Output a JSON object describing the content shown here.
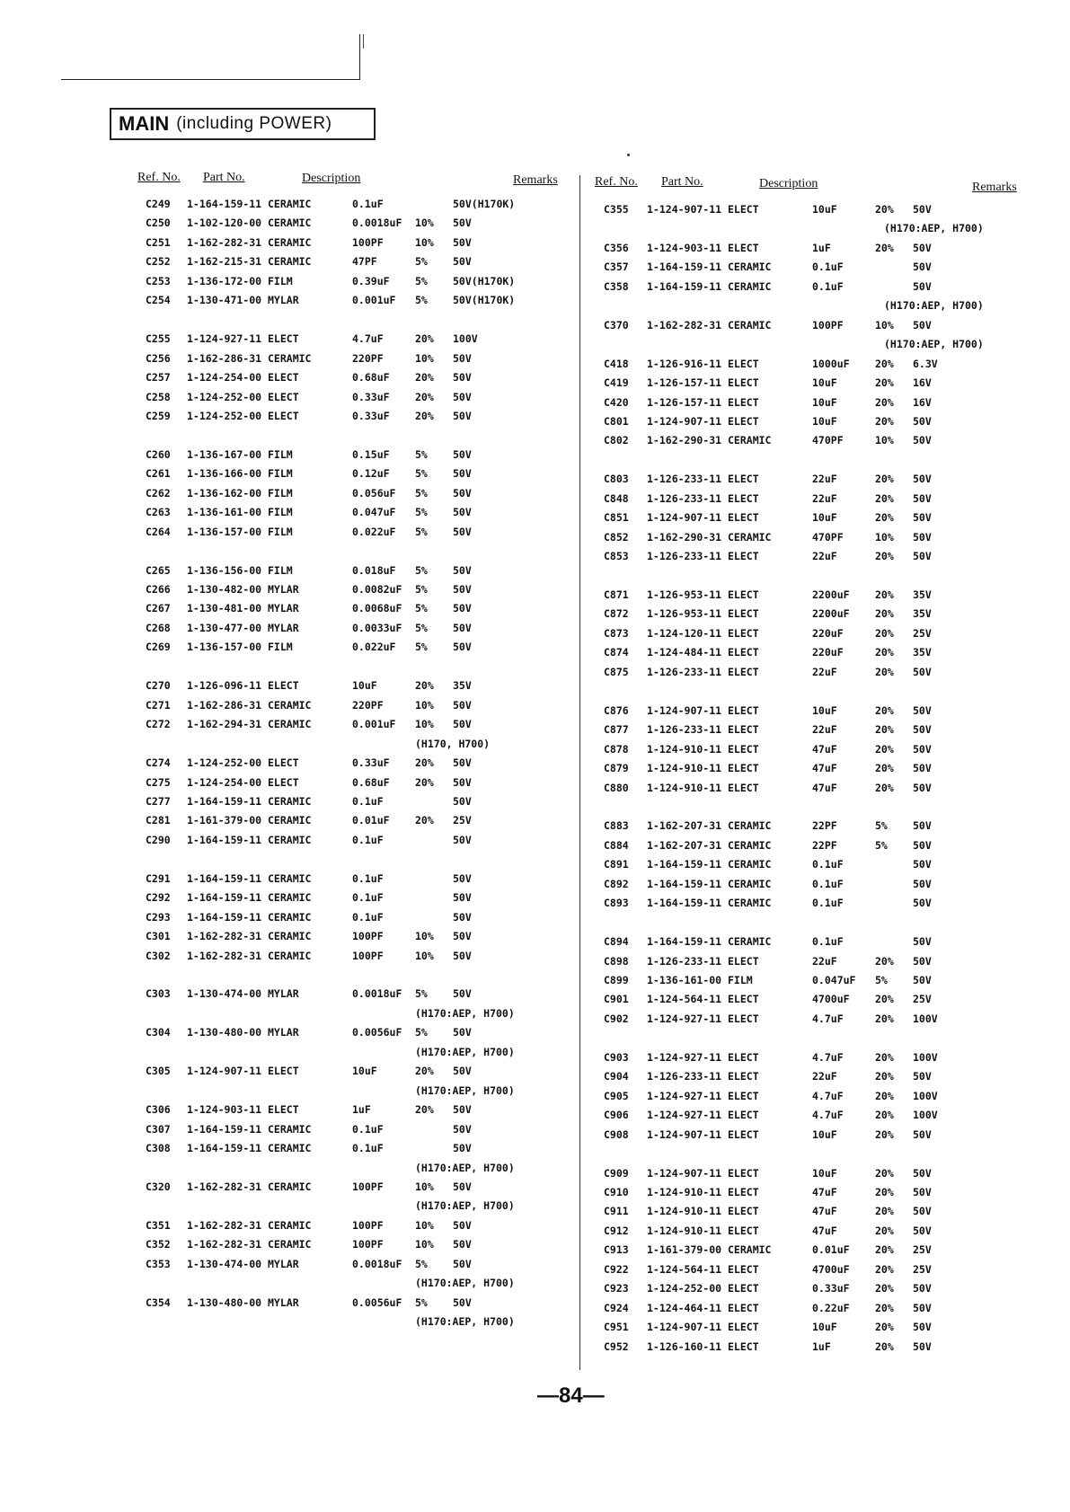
{
  "title": {
    "main": "MAIN",
    "sub": "(including POWER)"
  },
  "headers": {
    "ref": "Ref. No.",
    "part": "Part No.",
    "desc": "Description",
    "remarks": "Remarks"
  },
  "page_number": "—84—",
  "left": [
    [
      [
        "C249",
        "1-164-159-11 CERAMIC",
        "0.1uF",
        "",
        "50V(H170K)"
      ],
      [
        "C250",
        "1-102-120-00 CERAMIC",
        "0.0018uF",
        "10%",
        "50V"
      ],
      [
        "C251",
        "1-162-282-31 CERAMIC",
        "100PF",
        "10%",
        "50V"
      ],
      [
        "C252",
        "1-162-215-31 CERAMIC",
        "47PF",
        "5%",
        "50V"
      ],
      [
        "C253",
        "1-136-172-00 FILM",
        "0.39uF",
        "5%",
        "50V(H170K)"
      ],
      [
        "C254",
        "1-130-471-00 MYLAR",
        "0.001uF",
        "5%",
        "50V(H170K)"
      ]
    ],
    [
      [
        "C255",
        "1-124-927-11 ELECT",
        "4.7uF",
        "20%",
        "100V"
      ],
      [
        "C256",
        "1-162-286-31 CERAMIC",
        "220PF",
        "10%",
        "50V"
      ],
      [
        "C257",
        "1-124-254-00 ELECT",
        "0.68uF",
        "20%",
        "50V"
      ],
      [
        "C258",
        "1-124-252-00 ELECT",
        "0.33uF",
        "20%",
        "50V"
      ],
      [
        "C259",
        "1-124-252-00 ELECT",
        "0.33uF",
        "20%",
        "50V"
      ]
    ],
    [
      [
        "C260",
        "1-136-167-00 FILM",
        "0.15uF",
        "5%",
        "50V"
      ],
      [
        "C261",
        "1-136-166-00 FILM",
        "0.12uF",
        "5%",
        "50V"
      ],
      [
        "C262",
        "1-136-162-00 FILM",
        "0.056uF",
        "5%",
        "50V"
      ],
      [
        "C263",
        "1-136-161-00 FILM",
        "0.047uF",
        "5%",
        "50V"
      ],
      [
        "C264",
        "1-136-157-00 FILM",
        "0.022uF",
        "5%",
        "50V"
      ]
    ],
    [
      [
        "C265",
        "1-136-156-00 FILM",
        "0.018uF",
        "5%",
        "50V"
      ],
      [
        "C266",
        "1-130-482-00 MYLAR",
        "0.0082uF",
        "5%",
        "50V"
      ],
      [
        "C267",
        "1-130-481-00 MYLAR",
        "0.0068uF",
        "5%",
        "50V"
      ],
      [
        "C268",
        "1-130-477-00 MYLAR",
        "0.0033uF",
        "5%",
        "50V"
      ],
      [
        "C269",
        "1-136-157-00 FILM",
        "0.022uF",
        "5%",
        "50V"
      ]
    ],
    [
      [
        "C270",
        "1-126-096-11 ELECT",
        "10uF",
        "20%",
        "35V"
      ],
      [
        "C271",
        "1-162-286-31 CERAMIC",
        "220PF",
        "10%",
        "50V"
      ],
      [
        "C272",
        "1-162-294-31 CERAMIC",
        "0.001uF",
        "10%",
        "50V"
      ],
      [
        "",
        "",
        "",
        "",
        "(H170, H700)"
      ],
      [
        "C274",
        "1-124-252-00 ELECT",
        "0.33uF",
        "20%",
        "50V"
      ],
      [
        "C275",
        "1-124-254-00 ELECT",
        "0.68uF",
        "20%",
        "50V"
      ],
      [
        "C277",
        "1-164-159-11 CERAMIC",
        "0.1uF",
        "",
        "50V"
      ],
      [
        "C281",
        "1-161-379-00 CERAMIC",
        "0.01uF",
        "20%",
        "25V"
      ],
      [
        "C290",
        "1-164-159-11 CERAMIC",
        "0.1uF",
        "",
        "50V"
      ]
    ],
    [
      [
        "C291",
        "1-164-159-11 CERAMIC",
        "0.1uF",
        "",
        "50V"
      ],
      [
        "C292",
        "1-164-159-11 CERAMIC",
        "0.1uF",
        "",
        "50V"
      ],
      [
        "C293",
        "1-164-159-11 CERAMIC",
        "0.1uF",
        "",
        "50V"
      ],
      [
        "C301",
        "1-162-282-31 CERAMIC",
        "100PF",
        "10%",
        "50V"
      ],
      [
        "C302",
        "1-162-282-31 CERAMIC",
        "100PF",
        "10%",
        "50V"
      ]
    ],
    [
      [
        "C303",
        "1-130-474-00 MYLAR",
        "0.0018uF",
        "5%",
        "50V"
      ],
      [
        "",
        "",
        "",
        "",
        "(H170:AEP, H700)"
      ],
      [
        "C304",
        "1-130-480-00 MYLAR",
        "0.0056uF",
        "5%",
        "50V"
      ],
      [
        "",
        "",
        "",
        "",
        "(H170:AEP, H700)"
      ],
      [
        "C305",
        "1-124-907-11 ELECT",
        "10uF",
        "20%",
        "50V"
      ],
      [
        "",
        "",
        "",
        "",
        "(H170:AEP, H700)"
      ],
      [
        "C306",
        "1-124-903-11 ELECT",
        "1uF",
        "20%",
        "50V"
      ],
      [
        "C307",
        "1-164-159-11 CERAMIC",
        "0.1uF",
        "",
        "50V"
      ],
      [
        "C308",
        "1-164-159-11 CERAMIC",
        "0.1uF",
        "",
        "50V"
      ],
      [
        "",
        "",
        "",
        "",
        "(H170:AEP, H700)"
      ],
      [
        "C320",
        "1-162-282-31 CERAMIC",
        "100PF",
        "10%",
        "50V"
      ],
      [
        "",
        "",
        "",
        "",
        "(H170:AEP, H700)"
      ],
      [
        "C351",
        "1-162-282-31 CERAMIC",
        "100PF",
        "10%",
        "50V"
      ],
      [
        "C352",
        "1-162-282-31 CERAMIC",
        "100PF",
        "10%",
        "50V"
      ],
      [
        "C353",
        "1-130-474-00 MYLAR",
        "0.0018uF",
        "5%",
        "50V"
      ],
      [
        "",
        "",
        "",
        "",
        "(H170:AEP, H700)"
      ],
      [
        "C354",
        "1-130-480-00 MYLAR",
        "0.0056uF",
        "5%",
        "50V"
      ],
      [
        "",
        "",
        "",
        "",
        "(H170:AEP, H700)"
      ]
    ]
  ],
  "right": [
    [
      [
        "C355",
        "1-124-907-11 ELECT",
        "10uF",
        "20%",
        "50V"
      ],
      [
        "",
        "",
        "",
        "",
        "(H170:AEP, H700)"
      ],
      [
        "C356",
        "1-124-903-11 ELECT",
        "1uF",
        "20%",
        "50V"
      ],
      [
        "C357",
        "1-164-159-11 CERAMIC",
        "0.1uF",
        "",
        "50V"
      ],
      [
        "C358",
        "1-164-159-11 CERAMIC",
        "0.1uF",
        "",
        "50V"
      ],
      [
        "",
        "",
        "",
        "",
        "(H170:AEP, H700)"
      ],
      [
        "C370",
        "1-162-282-31 CERAMIC",
        "100PF",
        "10%",
        "50V"
      ],
      [
        "",
        "",
        "",
        "",
        "(H170:AEP, H700)"
      ],
      [
        "C418",
        "1-126-916-11 ELECT",
        "1000uF",
        "20%",
        "6.3V"
      ],
      [
        "C419",
        "1-126-157-11 ELECT",
        "10uF",
        "20%",
        "16V"
      ],
      [
        "C420",
        "1-126-157-11 ELECT",
        "10uF",
        "20%",
        "16V"
      ],
      [
        "C801",
        "1-124-907-11 ELECT",
        "10uF",
        "20%",
        "50V"
      ],
      [
        "C802",
        "1-162-290-31 CERAMIC",
        "470PF",
        "10%",
        "50V"
      ]
    ],
    [
      [
        "C803",
        "1-126-233-11 ELECT",
        "22uF",
        "20%",
        "50V"
      ],
      [
        "C848",
        "1-126-233-11 ELECT",
        "22uF",
        "20%",
        "50V"
      ],
      [
        "C851",
        "1-124-907-11 ELECT",
        "10uF",
        "20%",
        "50V"
      ],
      [
        "C852",
        "1-162-290-31 CERAMIC",
        "470PF",
        "10%",
        "50V"
      ],
      [
        "C853",
        "1-126-233-11 ELECT",
        "22uF",
        "20%",
        "50V"
      ]
    ],
    [
      [
        "C871",
        "1-126-953-11 ELECT",
        "2200uF",
        "20%",
        "35V"
      ],
      [
        "C872",
        "1-126-953-11 ELECT",
        "2200uF",
        "20%",
        "35V"
      ],
      [
        "C873",
        "1-124-120-11 ELECT",
        "220uF",
        "20%",
        "25V"
      ],
      [
        "C874",
        "1-124-484-11 ELECT",
        "220uF",
        "20%",
        "35V"
      ],
      [
        "C875",
        "1-126-233-11 ELECT",
        "22uF",
        "20%",
        "50V"
      ]
    ],
    [
      [
        "C876",
        "1-124-907-11 ELECT",
        "10uF",
        "20%",
        "50V"
      ],
      [
        "C877",
        "1-126-233-11 ELECT",
        "22uF",
        "20%",
        "50V"
      ],
      [
        "C878",
        "1-124-910-11 ELECT",
        "47uF",
        "20%",
        "50V"
      ],
      [
        "C879",
        "1-124-910-11 ELECT",
        "47uF",
        "20%",
        "50V"
      ],
      [
        "C880",
        "1-124-910-11 ELECT",
        "47uF",
        "20%",
        "50V"
      ]
    ],
    [
      [
        "C883",
        "1-162-207-31 CERAMIC",
        "22PF",
        "5%",
        "50V"
      ],
      [
        "C884",
        "1-162-207-31 CERAMIC",
        "22PF",
        "5%",
        "50V"
      ],
      [
        "C891",
        "1-164-159-11 CERAMIC",
        "0.1uF",
        "",
        "50V"
      ],
      [
        "C892",
        "1-164-159-11 CERAMIC",
        "0.1uF",
        "",
        "50V"
      ],
      [
        "C893",
        "1-164-159-11 CERAMIC",
        "0.1uF",
        "",
        "50V"
      ]
    ],
    [
      [
        "C894",
        "1-164-159-11 CERAMIC",
        "0.1uF",
        "",
        "50V"
      ],
      [
        "C898",
        "1-126-233-11 ELECT",
        "22uF",
        "20%",
        "50V"
      ],
      [
        "C899",
        "1-136-161-00 FILM",
        "0.047uF",
        "5%",
        "50V"
      ],
      [
        "C901",
        "1-124-564-11 ELECT",
        "4700uF",
        "20%",
        "25V"
      ],
      [
        "C902",
        "1-124-927-11 ELECT",
        "4.7uF",
        "20%",
        "100V"
      ]
    ],
    [
      [
        "C903",
        "1-124-927-11 ELECT",
        "4.7uF",
        "20%",
        "100V"
      ],
      [
        "C904",
        "1-126-233-11 ELECT",
        "22uF",
        "20%",
        "50V"
      ],
      [
        "C905",
        "1-124-927-11 ELECT",
        "4.7uF",
        "20%",
        "100V"
      ],
      [
        "C906",
        "1-124-927-11 ELECT",
        "4.7uF",
        "20%",
        "100V"
      ],
      [
        "C908",
        "1-124-907-11 ELECT",
        "10uF",
        "20%",
        "50V"
      ]
    ],
    [
      [
        "C909",
        "1-124-907-11 ELECT",
        "10uF",
        "20%",
        "50V"
      ],
      [
        "C910",
        "1-124-910-11 ELECT",
        "47uF",
        "20%",
        "50V"
      ],
      [
        "C911",
        "1-124-910-11 ELECT",
        "47uF",
        "20%",
        "50V"
      ],
      [
        "C912",
        "1-124-910-11 ELECT",
        "47uF",
        "20%",
        "50V"
      ],
      [
        "C913",
        "1-161-379-00 CERAMIC",
        "0.01uF",
        "20%",
        "25V"
      ],
      [
        "C922",
        "1-124-564-11 ELECT",
        "4700uF",
        "20%",
        "25V"
      ],
      [
        "C923",
        "1-124-252-00 ELECT",
        "0.33uF",
        "20%",
        "50V"
      ],
      [
        "C924",
        "1-124-464-11 ELECT",
        "0.22uF",
        "20%",
        "50V"
      ],
      [
        "C951",
        "1-124-907-11 ELECT",
        "10uF",
        "20%",
        "50V"
      ],
      [
        "C952",
        "1-126-160-11 ELECT",
        "1uF",
        "20%",
        "50V"
      ]
    ]
  ]
}
